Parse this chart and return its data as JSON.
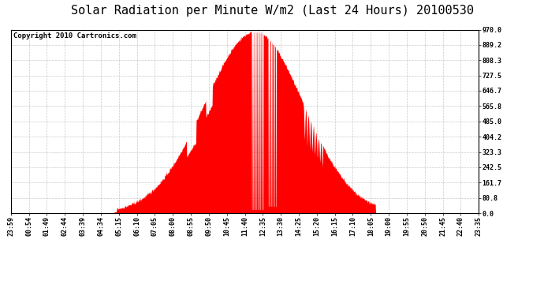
{
  "title": "Solar Radiation per Minute W/m2 (Last 24 Hours) 20100530",
  "copyright_text": "Copyright 2010 Cartronics.com",
  "bg_color": "#ffffff",
  "plot_bg_color": "#ffffff",
  "fill_color": "#ff0000",
  "dashed_line_color": "#ff0000",
  "grid_color": "#bbbbbb",
  "ymin": 0.0,
  "ymax": 970.0,
  "ytick_labels": [
    "0.0",
    "80.8",
    "161.7",
    "242.5",
    "323.3",
    "404.2",
    "485.0",
    "565.8",
    "646.7",
    "727.5",
    "808.3",
    "889.2",
    "970.0"
  ],
  "ytick_values": [
    0.0,
    80.8,
    161.7,
    242.5,
    323.3,
    404.2,
    485.0,
    565.8,
    646.7,
    727.5,
    808.3,
    889.2,
    970.0
  ],
  "x_tick_labels": [
    "23:59",
    "00:54",
    "01:49",
    "02:44",
    "03:39",
    "04:34",
    "05:15",
    "06:10",
    "07:05",
    "08:00",
    "08:55",
    "09:50",
    "10:45",
    "11:40",
    "12:35",
    "13:30",
    "14:25",
    "15:20",
    "16:15",
    "17:10",
    "18:05",
    "19:00",
    "19:55",
    "20:50",
    "21:45",
    "22:40",
    "23:35"
  ],
  "title_fontsize": 11,
  "copyright_fontsize": 6.5,
  "tick_fontsize": 6,
  "outer_border_color": "#000000",
  "n_points": 1440,
  "sunrise_min": 318,
  "sunset_min": 1121,
  "peak_min": 750,
  "peak_value": 968,
  "seed": 42
}
